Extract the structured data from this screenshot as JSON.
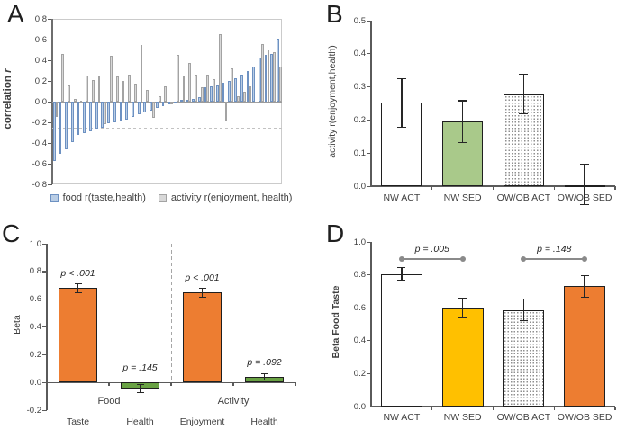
{
  "panels": {
    "a": {
      "letter": "A",
      "ylabel_text": "correlation ",
      "ylabel_italic": "r"
    },
    "b": {
      "letter": "B",
      "ylabel": "activity r(enjoyment,health)"
    },
    "c": {
      "letter": "C",
      "ylabel": "Beta"
    },
    "d": {
      "letter": "D",
      "ylabel": "Beta Food Taste"
    }
  },
  "colors": {
    "blue_fill": "#b9cde5",
    "blue_border": "#6d91c2",
    "gray_fill": "#d8d8d8",
    "gray_border": "#a3a3a3",
    "light_green": "#a9c98a",
    "dark_green": "#69a244",
    "orange": "#ed7d31",
    "yellow": "#ffc000",
    "white": "#ffffff",
    "bar_border": "#1f1f1f",
    "axis": "#5a5a5a",
    "bracket": "#8a8a8a",
    "ref_dash": "#c2c2c2"
  },
  "chart_data": [
    {
      "panel": "A",
      "type": "bar",
      "ylabel": "correlation r",
      "ylim": [
        -0.8,
        0.8
      ],
      "ytick_step": 0.2,
      "grid": "off",
      "ref_lines": [
        0.25,
        -0.26
      ],
      "legend_position": "bottom",
      "series": [
        {
          "name": "food r(taste,health)",
          "style": "blue",
          "values": [
            -0.57,
            -0.5,
            -0.46,
            -0.39,
            -0.32,
            -0.3,
            -0.29,
            -0.26,
            -0.25,
            -0.21,
            -0.2,
            -0.19,
            -0.17,
            -0.15,
            -0.12,
            -0.1,
            -0.09,
            -0.06,
            -0.04,
            -0.03,
            -0.02,
            0.02,
            0.02,
            0.03,
            0.04,
            0.14,
            0.15,
            0.16,
            0.18,
            0.2,
            0.23,
            0.26,
            0.3,
            0.34,
            0.43,
            0.45,
            0.46,
            0.61
          ]
        },
        {
          "name": "activity r(enjoyment, health)",
          "style": "gray",
          "values": [
            -0.15,
            0.46,
            0.16,
            0.03,
            0.01,
            0.25,
            0.21,
            0.25,
            -0.22,
            0.44,
            0.24,
            0.2,
            0.26,
            0.17,
            0.55,
            0.11,
            -0.16,
            0.05,
            0.15,
            -0.03,
            0.45,
            0.24,
            0.37,
            0.26,
            0.14,
            0.26,
            0.22,
            0.65,
            -0.18,
            0.32,
            0.05,
            0.1,
            0.15,
            -0.02,
            0.56,
            0.5,
            0.48,
            0.34
          ]
        }
      ]
    },
    {
      "panel": "B",
      "type": "bar",
      "ylabel": "activity r(enjoyment,health)",
      "ylim": [
        0,
        0.5
      ],
      "ytick_step": 0.1,
      "categories": [
        "NW ACT",
        "NW SED",
        "OW/OB ACT",
        "OW/OB SED"
      ],
      "values": [
        0.252,
        0.195,
        0.277,
        0.004
      ],
      "error_lo": [
        0.178,
        0.131,
        0.218,
        -0.056
      ],
      "error_hi": [
        0.325,
        0.258,
        0.338,
        0.065
      ],
      "bar_styles": [
        "white",
        "light_green",
        "dotted",
        "white"
      ]
    },
    {
      "panel": "C",
      "type": "bar",
      "ylabel": "Beta",
      "ylim": [
        -0.2,
        1.0
      ],
      "ytick_step": 0.2,
      "categories": [
        "Taste",
        "Health",
        "Enjoyment",
        "Health"
      ],
      "values": [
        0.68,
        -0.045,
        0.648,
        0.04
      ],
      "errors": [
        0.033,
        0.028,
        0.032,
        0.022
      ],
      "p_labels": [
        "p < .001",
        "p = .145",
        "p < .001",
        "p = .092"
      ],
      "bar_styles": [
        "orange",
        "dark_green",
        "orange",
        "dark_green"
      ],
      "groups": [
        {
          "label": "Food",
          "from": 0,
          "to": 1
        },
        {
          "label": "Activity",
          "from": 2,
          "to": 3
        }
      ],
      "separator_after_index": 1
    },
    {
      "panel": "D",
      "type": "bar",
      "ylabel": "Beta Food Taste",
      "ylim": [
        0,
        1.0
      ],
      "ytick_step": 0.2,
      "categories": [
        "NW ACT",
        "NW SED",
        "OW/OB ACT",
        "OW/OB SED"
      ],
      "values": [
        0.805,
        0.598,
        0.587,
        0.73
      ],
      "errors": [
        0.038,
        0.058,
        0.065,
        0.065
      ],
      "bar_styles": [
        "white",
        "yellow",
        "dotted",
        "orange"
      ],
      "brackets": [
        {
          "from": 0,
          "to": 1,
          "y": 0.895,
          "label": "p = .005"
        },
        {
          "from": 2,
          "to": 3,
          "y": 0.895,
          "label": "p = .148"
        }
      ]
    }
  ]
}
